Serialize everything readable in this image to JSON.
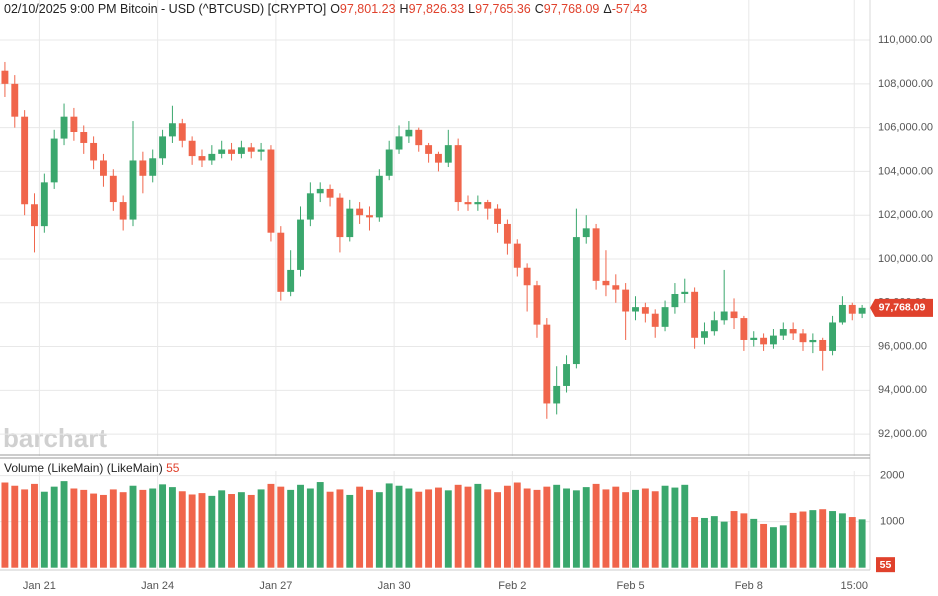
{
  "chart_data": [
    {
      "type": "candlestick",
      "title": "02/10/2025 9:00 PM Bitcoin - USD (^BTCUSD) [CRYPTO]",
      "quote": [
        {
          "label": "O",
          "value": "97,801.23"
        },
        {
          "label": "H",
          "value": "97,826.33"
        },
        {
          "label": "L",
          "value": "97,765.36"
        },
        {
          "label": "C",
          "value": "97,768.09"
        },
        {
          "label": "Δ",
          "value": "-57.43"
        }
      ],
      "watermark": "barchart",
      "up_color": "#3aa76d",
      "down_color": "#f0654b",
      "grid": true,
      "ylim": [
        91000,
        111830
      ],
      "yticks": [
        {
          "value": 92000,
          "label": "92,000.00"
        },
        {
          "value": 94000,
          "label": "94,000.00"
        },
        {
          "value": 96000,
          "label": "96,000.00"
        },
        {
          "value": 98000,
          "label": "98,000.00"
        },
        {
          "value": 100000,
          "label": "100,000.00"
        },
        {
          "value": 102000,
          "label": "102,000.00"
        },
        {
          "value": 104000,
          "label": "104,000.00"
        },
        {
          "value": 106000,
          "label": "106,000.00"
        },
        {
          "value": 108000,
          "label": "108,000.00"
        },
        {
          "value": 110000,
          "label": "110,000.00"
        }
      ],
      "last_price": {
        "value": 97768.09,
        "label": "97,768.09"
      },
      "x": [
        0.5,
        1.5,
        2.5,
        3.5,
        4.5,
        5.5,
        6.5,
        7.5,
        8.5,
        9.5,
        10.5,
        11.5,
        12.5,
        13.5,
        14.5,
        15.5,
        16.5,
        17.5,
        18.5,
        19.5,
        20.5,
        21.5,
        22.5,
        23.5,
        24.5,
        25.5,
        26.5,
        27.5,
        28.5,
        29.5,
        30.5,
        31.5,
        32.5,
        33.5,
        34.5,
        35.5,
        36.5,
        37.5,
        38.5,
        39.5,
        40.5,
        41.5,
        42.5,
        43.5,
        44.5,
        45.5,
        46.5,
        47.5,
        48.5,
        49.5,
        50.5,
        51.5,
        52.5,
        53.5,
        54.5,
        55.5,
        56.5,
        57.5,
        58.5,
        59.5,
        60.5,
        61.5,
        62.5,
        63.5,
        64.5,
        65.5,
        66.5,
        67.5,
        68.5,
        69.5,
        70.5,
        71.5,
        72.5,
        73.5,
        74.5,
        75.5,
        76.5,
        77.5,
        78.5,
        79.5,
        80.5,
        81.5,
        82.5,
        83.5,
        84.5,
        85.5,
        86.5,
        87.5
      ],
      "open": [
        108600,
        108000,
        106500,
        102500,
        101500,
        103500,
        105500,
        106500,
        105800,
        105300,
        104500,
        103800,
        102600,
        101800,
        104500,
        103800,
        104600,
        105600,
        106200,
        105400,
        104700,
        104500,
        104800,
        105000,
        104800,
        105100,
        104900,
        105000,
        101200,
        98500,
        99500,
        101800,
        103000,
        103200,
        102800,
        101000,
        102300,
        102000,
        101900,
        103800,
        105000,
        105600,
        105900,
        105200,
        104800,
        104400,
        105200,
        102600,
        102500,
        102600,
        102300,
        101600,
        100700,
        99600,
        98800,
        97000,
        93400,
        94200,
        95200,
        101000,
        101400,
        99000,
        98800,
        98600,
        97600,
        97800,
        97500,
        96900,
        97800,
        98400,
        98500,
        96400,
        96700,
        97200,
        97600,
        97300,
        96300,
        96400,
        96100,
        96500,
        96800,
        96600,
        96200,
        96300,
        95800,
        97100,
        97900,
        97500
      ],
      "high": [
        109000,
        108400,
        106800,
        103000,
        103900,
        105900,
        107100,
        106900,
        106100,
        105600,
        104800,
        104100,
        102900,
        106300,
        104900,
        105000,
        105900,
        107000,
        106400,
        105600,
        105000,
        105200,
        105400,
        105300,
        105400,
        105300,
        105300,
        105200,
        101500,
        100400,
        102400,
        103500,
        103500,
        103400,
        103000,
        102700,
        102600,
        102400,
        104100,
        105400,
        106100,
        106300,
        106000,
        105300,
        104900,
        105900,
        105500,
        102900,
        102900,
        102700,
        102500,
        101800,
        100900,
        99800,
        99000,
        97300,
        95100,
        95600,
        102300,
        102000,
        101600,
        100400,
        99300,
        98900,
        98300,
        98000,
        97700,
        98100,
        98900,
        99100,
        98700,
        97100,
        97600,
        99500,
        98200,
        97400,
        96700,
        96600,
        96800,
        97100,
        97100,
        96800,
        96600,
        96400,
        97400,
        98300,
        98000,
        97900
      ],
      "low": [
        107400,
        106000,
        102000,
        100300,
        101200,
        103200,
        105200,
        105400,
        104800,
        104100,
        103300,
        102200,
        101300,
        101500,
        103000,
        103500,
        104300,
        105300,
        105100,
        104300,
        104200,
        104300,
        104600,
        104500,
        104600,
        104600,
        104500,
        100800,
        98100,
        98300,
        99200,
        101500,
        102600,
        102400,
        100300,
        100800,
        101600,
        101300,
        101700,
        103600,
        104800,
        105300,
        104900,
        104400,
        104000,
        104200,
        102200,
        102200,
        102200,
        101800,
        101200,
        100200,
        99200,
        97600,
        96400,
        92700,
        92900,
        93900,
        95000,
        100700,
        98600,
        98300,
        98000,
        96300,
        97200,
        97100,
        96400,
        96700,
        97500,
        98000,
        95900,
        96100,
        96500,
        97000,
        96800,
        95800,
        96000,
        95800,
        95900,
        96300,
        96300,
        95800,
        95700,
        94900,
        95600,
        97000,
        97200,
        97300
      ],
      "close": [
        108000,
        106500,
        102500,
        101500,
        103500,
        105500,
        106500,
        105800,
        105300,
        104500,
        103800,
        102600,
        101800,
        104500,
        103800,
        104600,
        105600,
        106200,
        105400,
        104700,
        104500,
        104800,
        105000,
        104800,
        105100,
        104900,
        105000,
        101200,
        98500,
        99500,
        101800,
        103000,
        103200,
        102800,
        101000,
        102300,
        102000,
        101900,
        103800,
        105000,
        105600,
        105900,
        105200,
        104800,
        104400,
        105200,
        102600,
        102500,
        102600,
        102300,
        101600,
        100700,
        99600,
        98800,
        97000,
        93400,
        94200,
        95200,
        101000,
        101400,
        99000,
        98800,
        98600,
        97600,
        97800,
        97500,
        96900,
        97800,
        98400,
        98500,
        96400,
        96700,
        97200,
        97600,
        97300,
        96300,
        96400,
        96100,
        96500,
        96800,
        96600,
        96200,
        96300,
        95800,
        97100,
        97900,
        97500,
        97768.09
      ]
    },
    {
      "type": "bar",
      "title": "Volume (LikeMain)  (LikeMain)",
      "last_value": 55,
      "ylim": [
        -50,
        2100
      ],
      "yticks": [
        1000,
        2000
      ],
      "grid": true,
      "xlim": [
        0,
        88.3
      ],
      "xticks": [
        {
          "value": 4,
          "label": "Jan 21"
        },
        {
          "value": 16,
          "label": "Jan 24"
        },
        {
          "value": 28,
          "label": "Jan 27"
        },
        {
          "value": 40,
          "label": "Jan 30"
        },
        {
          "value": 52,
          "label": "Feb 2"
        },
        {
          "value": 64,
          "label": "Feb 5"
        },
        {
          "value": 76,
          "label": "Feb 8"
        },
        {
          "value": 86.7,
          "label": "15:00"
        }
      ],
      "values": [
        1850,
        1780,
        1700,
        1820,
        1650,
        1760,
        1880,
        1720,
        1690,
        1610,
        1580,
        1700,
        1640,
        1780,
        1690,
        1720,
        1810,
        1750,
        1660,
        1590,
        1620,
        1560,
        1680,
        1600,
        1640,
        1580,
        1700,
        1820,
        1760,
        1690,
        1800,
        1720,
        1860,
        1650,
        1700,
        1580,
        1760,
        1690,
        1640,
        1830,
        1780,
        1720,
        1650,
        1700,
        1740,
        1680,
        1800,
        1760,
        1820,
        1700,
        1640,
        1780,
        1850,
        1720,
        1690,
        1760,
        1800,
        1720,
        1680,
        1750,
        1820,
        1700,
        1760,
        1640,
        1690,
        1720,
        1660,
        1780,
        1740,
        1800,
        1100,
        1080,
        1120,
        1000,
        1230,
        1180,
        1060,
        950,
        880,
        920,
        1190,
        1220,
        1250,
        1270,
        1230,
        1180,
        1100,
        1050
      ]
    }
  ]
}
